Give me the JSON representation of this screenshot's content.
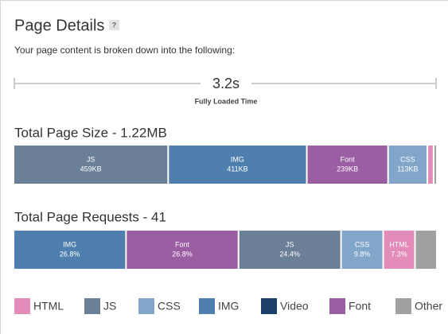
{
  "header": {
    "title": "Page Details",
    "help": "?",
    "subtitle": "Your page content is broken down into the following:"
  },
  "timing": {
    "value": "3.2s",
    "label": "Fully Loaded Time"
  },
  "size": {
    "title": "Total Page Size - 1.22MB",
    "segments": [
      {
        "name": "JS",
        "value": 459,
        "label": "459KB",
        "color": "#6b7f96"
      },
      {
        "name": "IMG",
        "value": 411,
        "label": "411KB",
        "color": "#4e7fae"
      },
      {
        "name": "Font",
        "value": 239,
        "label": "239KB",
        "color": "#9b5ea3"
      },
      {
        "name": "CSS",
        "value": 113,
        "label": "113KB",
        "color": "#82a6c9"
      },
      {
        "name": null,
        "value": 14,
        "label": null,
        "color": "#e48cb9"
      },
      {
        "name": null,
        "value": 5,
        "label": null,
        "color": "#a0a0a0"
      }
    ]
  },
  "requests": {
    "title": "Total Page Requests - 41",
    "segments": [
      {
        "name": "IMG",
        "value": 26.8,
        "label": "26.8%",
        "color": "#4e7fae"
      },
      {
        "name": "Font",
        "value": 26.8,
        "label": "26.8%",
        "color": "#9b5ea3"
      },
      {
        "name": "JS",
        "value": 24.4,
        "label": "24.4%",
        "color": "#6b7f96"
      },
      {
        "name": "CSS",
        "value": 9.8,
        "label": "9.8%",
        "color": "#82a6c9"
      },
      {
        "name": "HTML",
        "value": 7.3,
        "label": "7.3%",
        "color": "#e48cb9"
      },
      {
        "name": null,
        "value": 4.9,
        "label": null,
        "color": "#a0a0a0"
      }
    ]
  },
  "legend": [
    {
      "name": "HTML",
      "color": "#e48cb9"
    },
    {
      "name": "JS",
      "color": "#6b7f96"
    },
    {
      "name": "CSS",
      "color": "#82a6c9"
    },
    {
      "name": "IMG",
      "color": "#4e7fae"
    },
    {
      "name": "Video",
      "color": "#1d3f6b"
    },
    {
      "name": "Font",
      "color": "#9b5ea3"
    },
    {
      "name": "Other",
      "color": "#a0a0a0"
    }
  ]
}
